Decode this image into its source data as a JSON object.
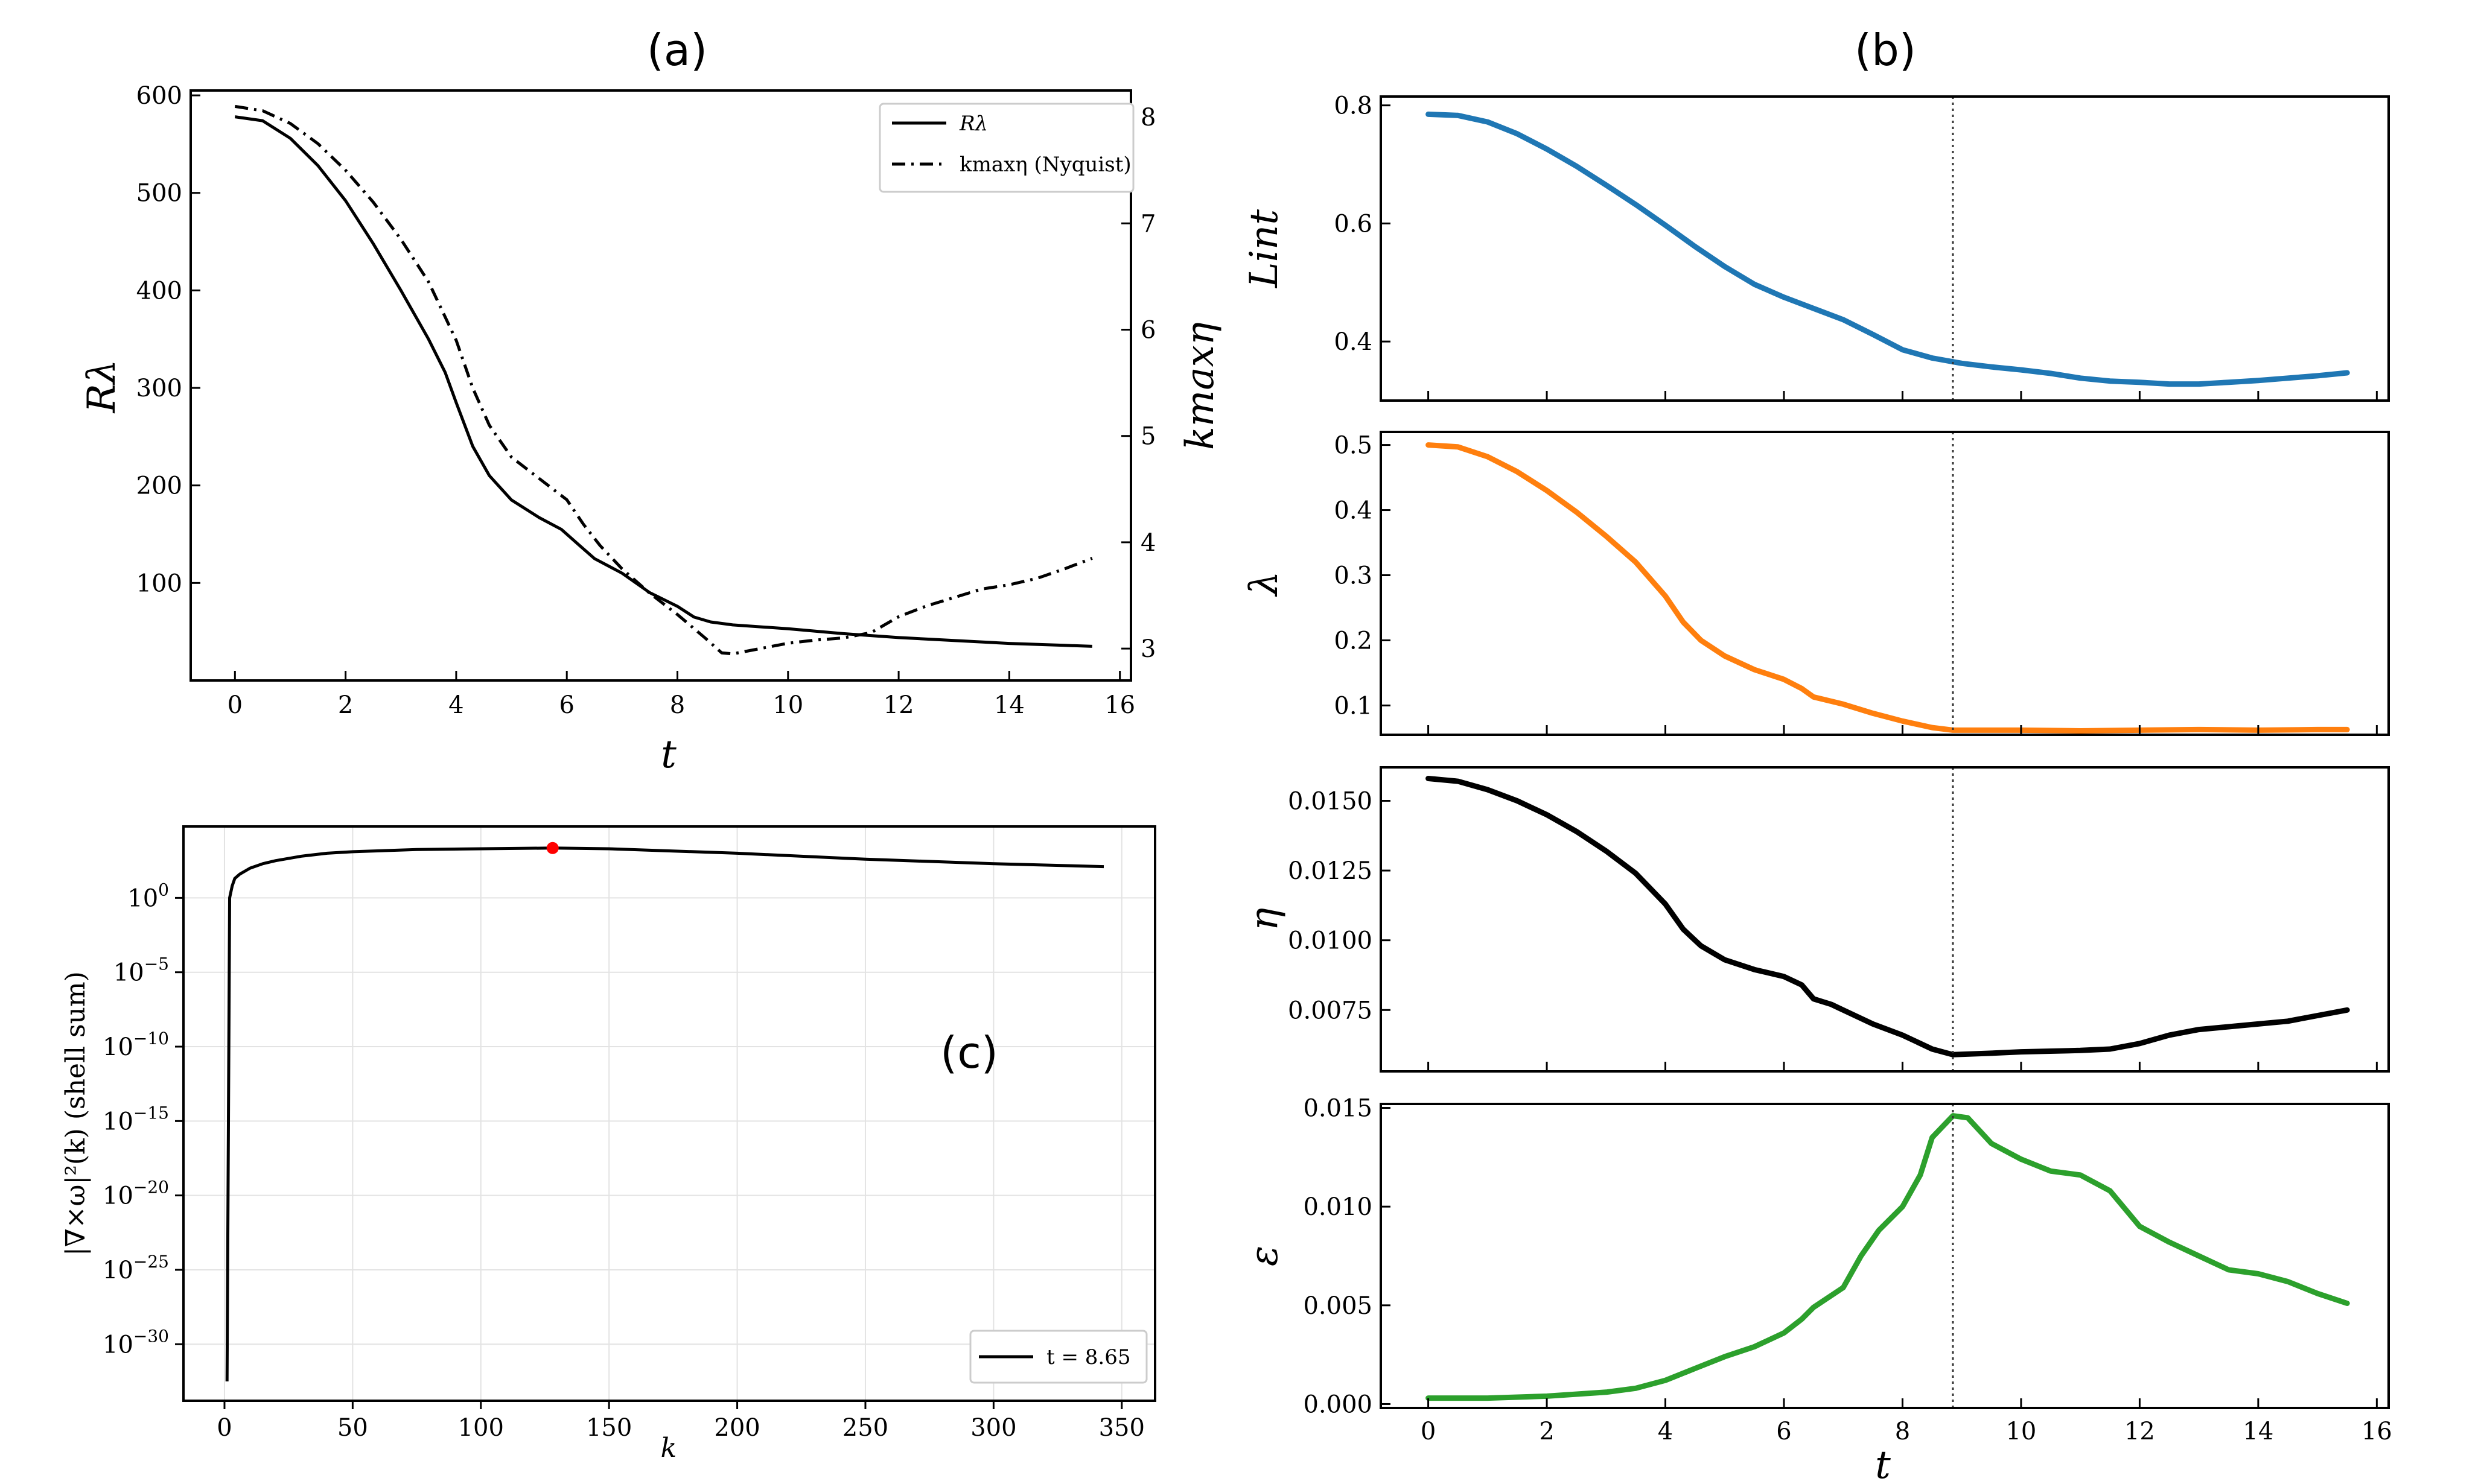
{
  "chart_data": [
    {
      "id": "a",
      "panel_label": "(a)",
      "type": "line",
      "xlabel": "t",
      "ylabel": "Rλ",
      "y2label": "kmaxη",
      "xlim": [
        -0.8,
        16.2
      ],
      "ylim": [
        0,
        605
      ],
      "y2lim": [
        2.7,
        8.25
      ],
      "xticks": [
        0,
        2,
        4,
        6,
        8,
        10,
        12,
        14,
        16
      ],
      "yticks": [
        100,
        200,
        300,
        400,
        500,
        600
      ],
      "y2ticks": [
        3,
        4,
        5,
        6,
        7,
        8
      ],
      "legend_position": "top-right",
      "series": [
        {
          "name": "Rλ",
          "axis": "left",
          "style": "solid",
          "color": "#000000",
          "x": [
            0,
            0.5,
            1,
            1.5,
            2,
            2.5,
            3,
            3.5,
            3.8,
            4,
            4.3,
            4.6,
            5,
            5.5,
            5.9,
            6.2,
            6.5,
            7,
            7.5,
            8,
            8.3,
            8.6,
            9,
            10,
            11,
            12,
            13,
            14,
            15,
            15.5
          ],
          "y": [
            578,
            574,
            556,
            528,
            492,
            448,
            400,
            350,
            316,
            285,
            240,
            210,
            185,
            167,
            155,
            140,
            125,
            110,
            90,
            76,
            65,
            60,
            57,
            53,
            48,
            44,
            41,
            38,
            36,
            35
          ]
        },
        {
          "name": "kmaxη (Nyquist)",
          "axis": "right",
          "style": "dashdot",
          "color": "#000000",
          "x": [
            0,
            0.5,
            1,
            1.5,
            2,
            2.5,
            3,
            3.5,
            4,
            4.3,
            4.6,
            5,
            5.5,
            6,
            6.3,
            6.6,
            7,
            7.5,
            8,
            8.5,
            8.8,
            9,
            9.5,
            10,
            10.5,
            11,
            11.5,
            12,
            12.5,
            13,
            13.5,
            14,
            14.5,
            15,
            15.5
          ],
          "y": [
            8.1,
            8.06,
            7.94,
            7.75,
            7.5,
            7.2,
            6.85,
            6.45,
            5.9,
            5.45,
            5.1,
            4.8,
            4.6,
            4.4,
            4.17,
            3.97,
            3.75,
            3.52,
            3.32,
            3.1,
            2.96,
            2.95,
            3.0,
            3.05,
            3.08,
            3.1,
            3.15,
            3.3,
            3.4,
            3.48,
            3.56,
            3.6,
            3.66,
            3.75,
            3.85
          ]
        }
      ]
    },
    {
      "id": "b",
      "panel_label": "(b)",
      "type": "line",
      "xlabel": "t",
      "xlim": [
        -0.8,
        16.2
      ],
      "xticks": [
        0,
        2,
        4,
        6,
        8,
        10,
        12,
        14,
        16
      ],
      "marker_line_x": 8.85,
      "subplots": [
        {
          "ylabel": "Lint",
          "ylim": [
            0.3,
            0.815
          ],
          "yticks": [
            0.4,
            0.6,
            0.8
          ],
          "ytick_labels": [
            "0.4",
            "0.6",
            "0.8"
          ],
          "color": "#1f77b4",
          "x": [
            0,
            0.5,
            1,
            1.5,
            2,
            2.5,
            3,
            3.5,
            4,
            4.5,
            5,
            5.5,
            6,
            6.5,
            7,
            7.5,
            8,
            8.5,
            9,
            9.5,
            10,
            10.5,
            11,
            11.5,
            12,
            12.5,
            13,
            13.5,
            14,
            14.5,
            15,
            15.5
          ],
          "y": [
            0.785,
            0.783,
            0.772,
            0.752,
            0.726,
            0.697,
            0.665,
            0.632,
            0.597,
            0.561,
            0.527,
            0.497,
            0.475,
            0.456,
            0.437,
            0.412,
            0.386,
            0.372,
            0.363,
            0.357,
            0.352,
            0.346,
            0.338,
            0.333,
            0.331,
            0.328,
            0.328,
            0.331,
            0.334,
            0.338,
            0.342,
            0.347
          ]
        },
        {
          "ylabel": "λ",
          "ylim": [
            0.055,
            0.52
          ],
          "yticks": [
            0.1,
            0.2,
            0.3,
            0.4,
            0.5
          ],
          "ytick_labels": [
            "0.1",
            "0.2",
            "0.3",
            "0.4",
            "0.5"
          ],
          "color": "#ff7f0e",
          "x": [
            0,
            0.5,
            1,
            1.5,
            2,
            2.5,
            3,
            3.5,
            4,
            4.3,
            4.6,
            5,
            5.5,
            6,
            6.3,
            6.5,
            7,
            7.5,
            8,
            8.5,
            8.85,
            9.5,
            10,
            11,
            12,
            13,
            14,
            15,
            15.5
          ],
          "y": [
            0.5,
            0.497,
            0.482,
            0.459,
            0.43,
            0.397,
            0.36,
            0.32,
            0.268,
            0.228,
            0.2,
            0.176,
            0.155,
            0.14,
            0.126,
            0.113,
            0.102,
            0.088,
            0.076,
            0.066,
            0.062,
            0.062,
            0.062,
            0.061,
            0.062,
            0.063,
            0.062,
            0.063,
            0.063
          ]
        },
        {
          "ylabel": "η",
          "ylim": [
            0.0053,
            0.0162
          ],
          "yticks": [
            0.0075,
            0.01,
            0.0125,
            0.015
          ],
          "ytick_labels": [
            "0.0075",
            "0.0100",
            "0.0125",
            "0.0150"
          ],
          "color": "#000000",
          "x": [
            0,
            0.5,
            1,
            1.5,
            2,
            2.5,
            3,
            3.5,
            4,
            4.3,
            4.6,
            5,
            5.5,
            6,
            6.3,
            6.5,
            6.8,
            7,
            7.5,
            8,
            8.5,
            8.85,
            9.5,
            10,
            11,
            11.5,
            12,
            12.5,
            13,
            13.5,
            14,
            14.5,
            15,
            15.5
          ],
          "y": [
            0.0158,
            0.0157,
            0.0154,
            0.015,
            0.0145,
            0.0139,
            0.0132,
            0.0124,
            0.0113,
            0.0104,
            0.0098,
            0.0093,
            0.00895,
            0.0087,
            0.0084,
            0.0079,
            0.0077,
            0.0075,
            0.007,
            0.0066,
            0.0061,
            0.0059,
            0.00595,
            0.006,
            0.00605,
            0.0061,
            0.0063,
            0.0066,
            0.0068,
            0.0069,
            0.007,
            0.0071,
            0.0073,
            0.0075
          ]
        },
        {
          "ylabel": "ε",
          "ylim": [
            -0.0002,
            0.0152
          ],
          "yticks": [
            0.0,
            0.005,
            0.01,
            0.015
          ],
          "ytick_labels": [
            "0.000",
            "0.005",
            "0.010",
            "0.015"
          ],
          "color": "#2ca02c",
          "x": [
            0,
            1,
            2,
            3,
            3.5,
            4,
            4.5,
            5,
            5.5,
            6,
            6.3,
            6.5,
            7,
            7.3,
            7.6,
            8,
            8.3,
            8.5,
            8.85,
            9.1,
            9.5,
            10,
            10.5,
            11,
            11.5,
            12,
            12.5,
            13,
            13.5,
            14,
            14.5,
            15,
            15.5
          ],
          "y": [
            0.0003,
            0.0003,
            0.0004,
            0.0006,
            0.0008,
            0.0012,
            0.0018,
            0.0024,
            0.0029,
            0.0036,
            0.0043,
            0.0049,
            0.0059,
            0.0075,
            0.0088,
            0.01,
            0.0116,
            0.0135,
            0.0146,
            0.0145,
            0.0132,
            0.0124,
            0.0118,
            0.0116,
            0.0108,
            0.009,
            0.0082,
            0.0075,
            0.0068,
            0.0066,
            0.0062,
            0.0056,
            0.0051
          ]
        }
      ]
    },
    {
      "id": "c",
      "panel_label": "(c)",
      "type": "line",
      "xlabel": "k",
      "ylabel": "|∇×ω|²(k)  (shell sum)",
      "yscale": "log",
      "xlim": [
        -16,
        363
      ],
      "ylim_log10": [
        -33.8,
        4.8
      ],
      "xticks": [
        0,
        50,
        100,
        150,
        200,
        250,
        300,
        350
      ],
      "yticks_exp": [
        0,
        -5,
        -10,
        -15,
        -20,
        -25,
        -30
      ],
      "legend_position": "bottom-right",
      "grid": true,
      "peak_marker": {
        "k": 128,
        "color": "#ff0000"
      },
      "series": [
        {
          "name": "t = 8.65",
          "color": "#000000",
          "x": [
            1,
            2,
            3,
            4,
            6,
            8,
            10,
            15,
            20,
            30,
            40,
            50,
            75,
            100,
            128,
            150,
            200,
            250,
            300,
            343
          ],
          "y_log10": [
            -32.5,
            0,
            0.8,
            1.3,
            1.6,
            1.8,
            2.0,
            2.3,
            2.5,
            2.8,
            3.0,
            3.1,
            3.25,
            3.3,
            3.35,
            3.3,
            3.0,
            2.6,
            2.3,
            2.1
          ]
        }
      ]
    }
  ]
}
